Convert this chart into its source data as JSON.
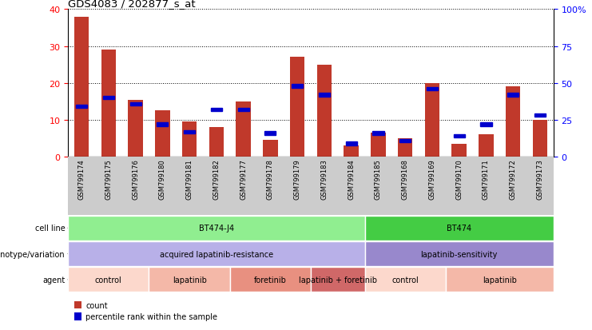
{
  "title": "GDS4083 / 202877_s_at",
  "samples": [
    "GSM799174",
    "GSM799175",
    "GSM799176",
    "GSM799180",
    "GSM799181",
    "GSM799182",
    "GSM799177",
    "GSM799178",
    "GSM799179",
    "GSM799183",
    "GSM799184",
    "GSM799185",
    "GSM799168",
    "GSM799169",
    "GSM799170",
    "GSM799171",
    "GSM799172",
    "GSM799173"
  ],
  "counts": [
    38,
    29,
    15.5,
    12.5,
    9.5,
    8,
    15,
    4.5,
    27,
    25,
    3,
    6.5,
    5,
    20,
    3.5,
    6,
    19,
    10
  ],
  "percentile": [
    34,
    40,
    36,
    22,
    17,
    32,
    32,
    16,
    48,
    42,
    9,
    16,
    11,
    46,
    14,
    22,
    42,
    28
  ],
  "bar_color": "#c0392b",
  "pct_color": "#0000cc",
  "ylim_left": [
    0,
    40
  ],
  "ylim_right": [
    0,
    100
  ],
  "yticks_left": [
    0,
    10,
    20,
    30,
    40
  ],
  "yticks_right": [
    0,
    25,
    50,
    75,
    100
  ],
  "ytick_labels_right": [
    "0",
    "25",
    "50",
    "75",
    "100%"
  ],
  "cell_line_groups": [
    {
      "label": "BT474-J4",
      "start": 0,
      "end": 11,
      "color": "#90ee90"
    },
    {
      "label": "BT474",
      "start": 11,
      "end": 18,
      "color": "#44cc44"
    }
  ],
  "genotype_groups": [
    {
      "label": "acquired lapatinib-resistance",
      "start": 0,
      "end": 11,
      "color": "#b8b0e8"
    },
    {
      "label": "lapatinib-sensitivity",
      "start": 11,
      "end": 18,
      "color": "#9888cc"
    }
  ],
  "agent_groups": [
    {
      "label": "control",
      "start": 0,
      "end": 3,
      "color": "#fcd8cc"
    },
    {
      "label": "lapatinib",
      "start": 3,
      "end": 6,
      "color": "#f4b8a8"
    },
    {
      "label": "foretinib",
      "start": 6,
      "end": 9,
      "color": "#e89080"
    },
    {
      "label": "lapatinib + foretinib",
      "start": 9,
      "end": 11,
      "color": "#d06868"
    },
    {
      "label": "control",
      "start": 11,
      "end": 14,
      "color": "#fcd8cc"
    },
    {
      "label": "lapatinib",
      "start": 14,
      "end": 18,
      "color": "#f4b8a8"
    }
  ],
  "legend_red_label": "count",
  "legend_blue_label": "percentile rank within the sample",
  "xtick_bg_color": "#cccccc"
}
